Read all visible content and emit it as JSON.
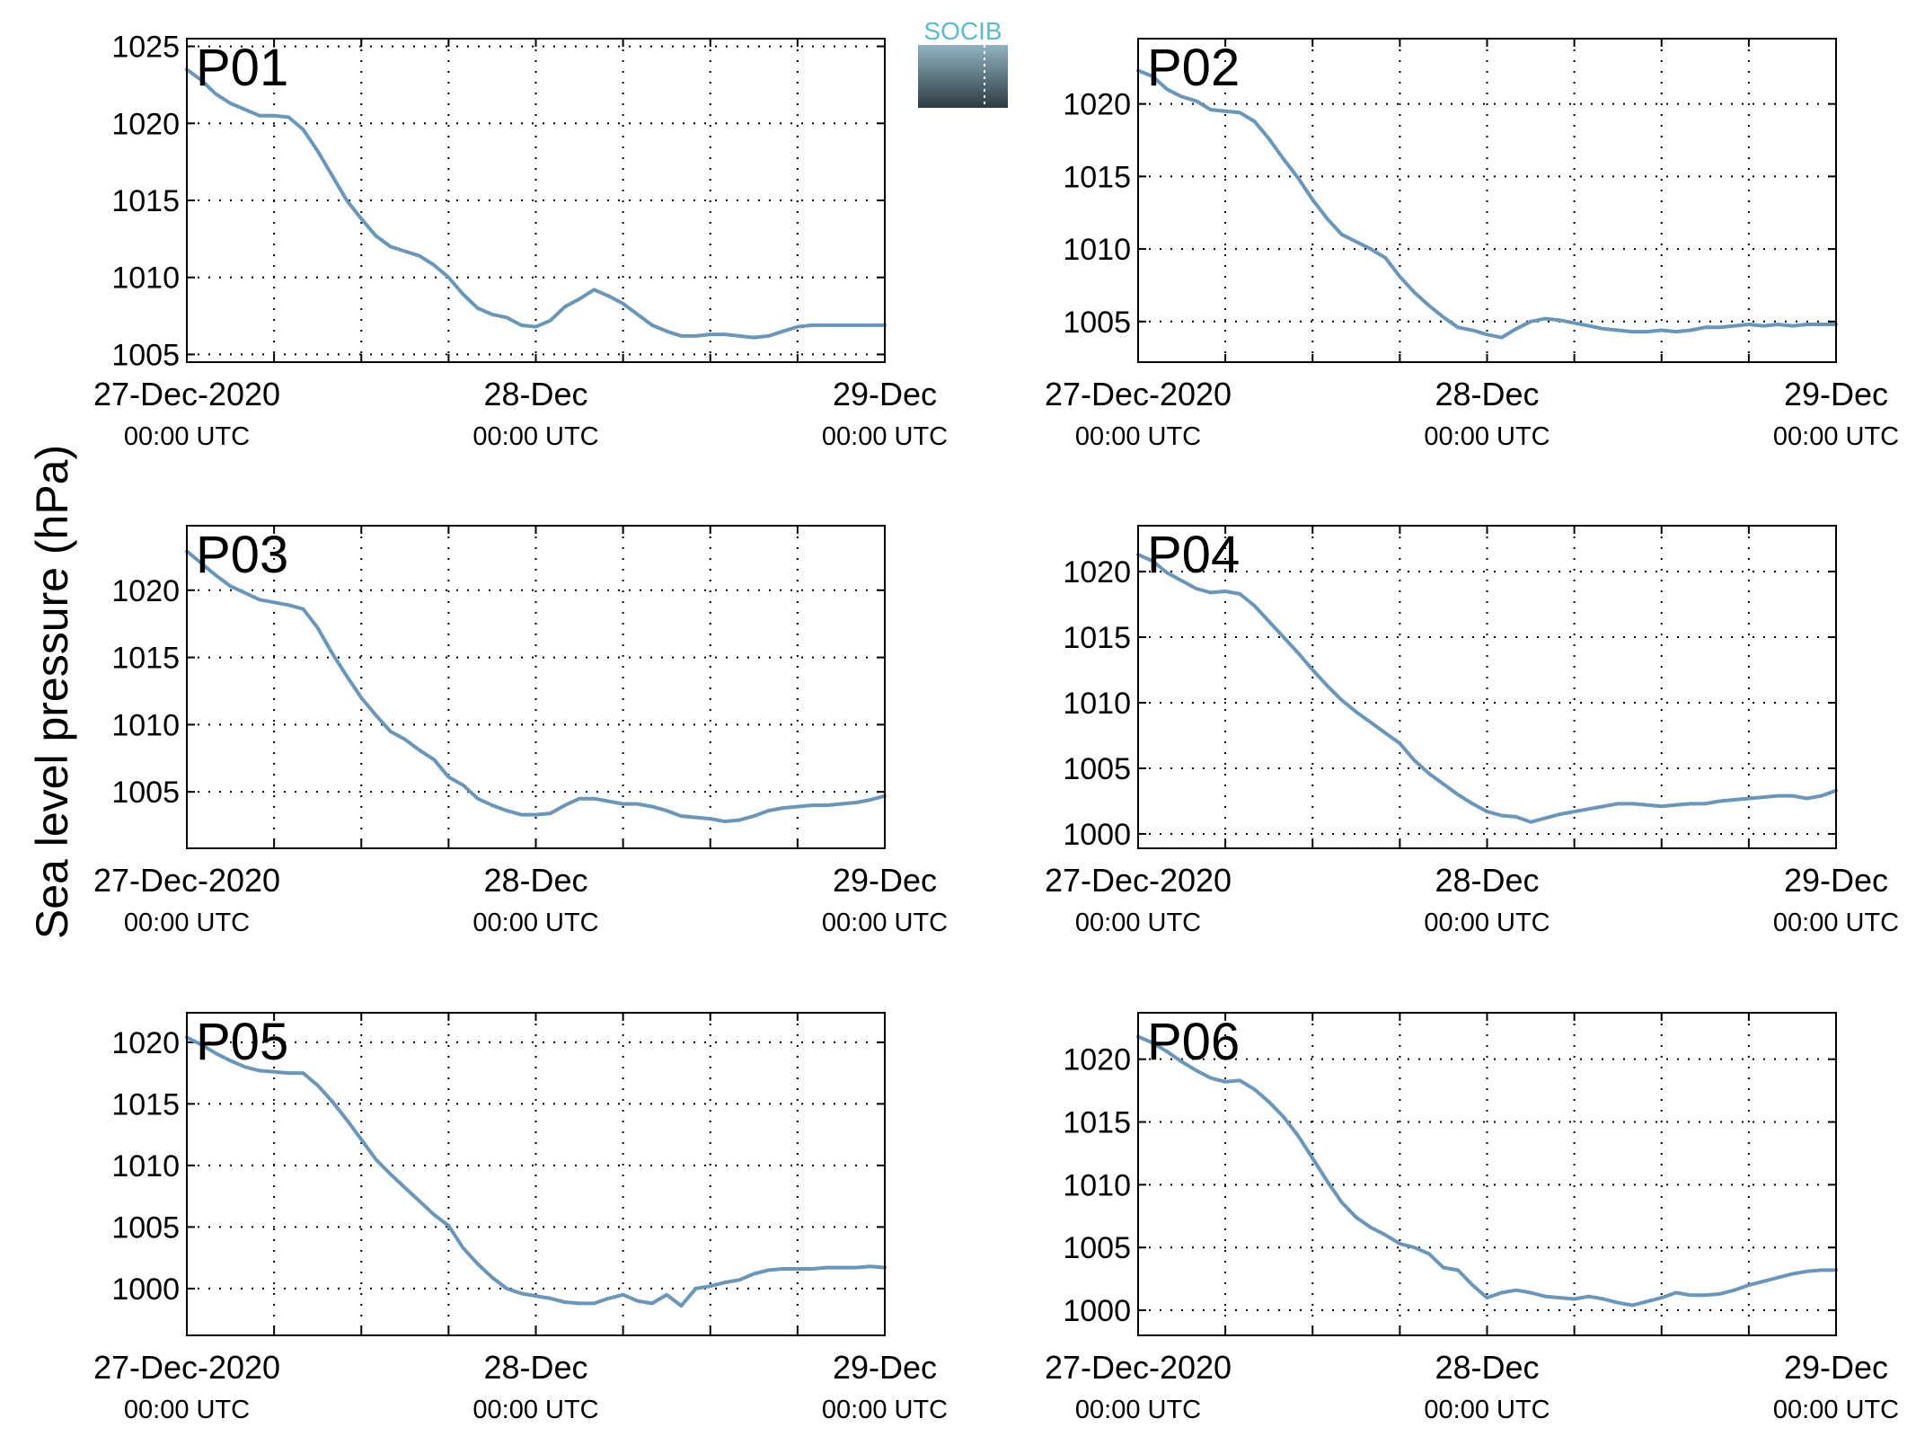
{
  "figure": {
    "ylabel": "Sea level pressure (hPa)",
    "logo_text": "SOCIB",
    "line_color": "#6a96ba",
    "label_color": "#ff0000"
  },
  "chart_data": [
    {
      "type": "line",
      "name": "P01",
      "xlim": [
        0,
        48
      ],
      "ylim": [
        1004.5,
        1025.5
      ],
      "yticks": [
        1005,
        1010,
        1015,
        1020,
        1025
      ],
      "x": [
        0,
        1,
        2,
        3,
        4,
        5,
        6,
        7,
        8,
        9,
        10,
        11,
        12,
        13,
        14,
        15,
        16,
        17,
        18,
        19,
        20,
        21,
        22,
        23,
        24,
        25,
        26,
        27,
        28,
        29,
        30,
        31,
        32,
        33,
        34,
        35,
        36,
        37,
        38,
        39,
        40,
        41,
        42,
        43,
        44,
        45,
        46,
        47,
        48
      ],
      "values": [
        1023.5,
        1022.8,
        1021.9,
        1021.3,
        1020.9,
        1020.5,
        1020.5,
        1020.4,
        1019.6,
        1018.2,
        1016.6,
        1015.0,
        1013.8,
        1012.7,
        1012.0,
        1011.7,
        1011.4,
        1010.8,
        1010.0,
        1008.9,
        1008.0,
        1007.6,
        1007.4,
        1006.9,
        1006.8,
        1007.2,
        1008.1,
        1008.6,
        1009.2,
        1008.8,
        1008.3,
        1007.6,
        1006.9,
        1006.5,
        1006.2,
        1006.2,
        1006.3,
        1006.3,
        1006.2,
        1006.1,
        1006.2,
        1006.5,
        1006.8,
        1006.9,
        1006.9,
        1006.9,
        1006.9,
        1006.9,
        1006.9
      ]
    },
    {
      "type": "line",
      "name": "P02",
      "xlim": [
        0,
        48
      ],
      "ylim": [
        1002.2,
        1024.5
      ],
      "yticks": [
        1005,
        1010,
        1015,
        1020
      ],
      "x": [
        0,
        1,
        2,
        3,
        4,
        5,
        6,
        7,
        8,
        9,
        10,
        11,
        12,
        13,
        14,
        15,
        16,
        17,
        18,
        19,
        20,
        21,
        22,
        23,
        24,
        25,
        26,
        27,
        28,
        29,
        30,
        31,
        32,
        33,
        34,
        35,
        36,
        37,
        38,
        39,
        40,
        41,
        42,
        43,
        44,
        45,
        46,
        47,
        48
      ],
      "values": [
        1022.3,
        1021.9,
        1021.0,
        1020.5,
        1020.2,
        1019.6,
        1019.5,
        1019.4,
        1018.8,
        1017.6,
        1016.2,
        1014.9,
        1013.4,
        1012.1,
        1011.0,
        1010.5,
        1010.0,
        1009.4,
        1008.1,
        1007.0,
        1006.1,
        1005.3,
        1004.6,
        1004.4,
        1004.1,
        1003.9,
        1004.5,
        1005.0,
        1005.2,
        1005.1,
        1004.9,
        1004.7,
        1004.5,
        1004.4,
        1004.3,
        1004.3,
        1004.4,
        1004.3,
        1004.4,
        1004.6,
        1004.6,
        1004.7,
        1004.8,
        1004.7,
        1004.8,
        1004.7,
        1004.8,
        1004.8,
        1004.8
      ]
    },
    {
      "type": "line",
      "name": "P03",
      "xlim": [
        0,
        48
      ],
      "ylim": [
        1000.8,
        1024.8
      ],
      "yticks": [
        1005,
        1010,
        1015,
        1020
      ],
      "x": [
        0,
        1,
        2,
        3,
        4,
        5,
        6,
        7,
        8,
        9,
        10,
        11,
        12,
        13,
        14,
        15,
        16,
        17,
        18,
        19,
        20,
        21,
        22,
        23,
        24,
        25,
        26,
        27,
        28,
        29,
        30,
        31,
        32,
        33,
        34,
        35,
        36,
        37,
        38,
        39,
        40,
        41,
        42,
        43,
        44,
        45,
        46,
        47,
        48
      ],
      "values": [
        1022.9,
        1022.0,
        1021.1,
        1020.3,
        1019.8,
        1019.3,
        1019.1,
        1018.9,
        1018.6,
        1017.2,
        1015.3,
        1013.6,
        1012.0,
        1010.7,
        1009.5,
        1008.9,
        1008.1,
        1007.4,
        1006.1,
        1005.5,
        1004.5,
        1004.0,
        1003.6,
        1003.3,
        1003.3,
        1003.4,
        1004.0,
        1004.5,
        1004.5,
        1004.3,
        1004.1,
        1004.1,
        1003.9,
        1003.6,
        1003.2,
        1003.1,
        1003.0,
        1002.8,
        1002.9,
        1003.2,
        1003.6,
        1003.8,
        1003.9,
        1004.0,
        1004.0,
        1004.1,
        1004.2,
        1004.4,
        1004.7
      ]
    },
    {
      "type": "line",
      "name": "P04",
      "xlim": [
        0,
        48
      ],
      "ylim": [
        998.9,
        1023.5
      ],
      "yticks": [
        1000,
        1005,
        1010,
        1015,
        1020
      ],
      "x": [
        0,
        1,
        2,
        3,
        4,
        5,
        6,
        7,
        8,
        9,
        10,
        11,
        12,
        13,
        14,
        15,
        16,
        17,
        18,
        19,
        20,
        21,
        22,
        23,
        24,
        25,
        26,
        27,
        28,
        29,
        30,
        31,
        32,
        33,
        34,
        35,
        36,
        37,
        38,
        39,
        40,
        41,
        42,
        43,
        44,
        45,
        46,
        47,
        48
      ],
      "values": [
        1021.3,
        1020.8,
        1019.9,
        1019.3,
        1018.7,
        1018.4,
        1018.5,
        1018.3,
        1017.4,
        1016.2,
        1015.0,
        1013.8,
        1012.5,
        1011.3,
        1010.2,
        1009.3,
        1008.5,
        1007.7,
        1006.9,
        1005.6,
        1004.6,
        1003.8,
        1003.0,
        1002.3,
        1001.7,
        1001.4,
        1001.3,
        1000.9,
        1001.2,
        1001.5,
        1001.7,
        1001.9,
        1002.1,
        1002.3,
        1002.3,
        1002.2,
        1002.1,
        1002.2,
        1002.3,
        1002.3,
        1002.5,
        1002.6,
        1002.7,
        1002.8,
        1002.9,
        1002.9,
        1002.7,
        1002.9,
        1003.3
      ]
    },
    {
      "type": "line",
      "name": "P05",
      "xlim": [
        0,
        48
      ],
      "ylim": [
        996.2,
        1022.4
      ],
      "yticks": [
        1000,
        1005,
        1010,
        1015,
        1020
      ],
      "x": [
        0,
        1,
        2,
        3,
        4,
        5,
        6,
        7,
        8,
        9,
        10,
        11,
        12,
        13,
        14,
        15,
        16,
        17,
        18,
        19,
        20,
        21,
        22,
        23,
        24,
        25,
        26,
        27,
        28,
        29,
        30,
        31,
        32,
        33,
        34,
        35,
        36,
        37,
        38,
        39,
        40,
        41,
        42,
        43,
        44,
        45,
        46,
        47,
        48
      ],
      "values": [
        1020.4,
        1019.8,
        1019.1,
        1018.5,
        1018.0,
        1017.7,
        1017.6,
        1017.5,
        1017.5,
        1016.5,
        1015.2,
        1013.7,
        1012.1,
        1010.5,
        1009.3,
        1008.2,
        1007.1,
        1006.0,
        1005.1,
        1003.3,
        1002.0,
        1000.9,
        1000.0,
        999.6,
        999.4,
        999.2,
        998.9,
        998.8,
        998.8,
        999.2,
        999.5,
        999.0,
        998.8,
        999.5,
        998.6,
        1000.0,
        1000.2,
        1000.5,
        1000.7,
        1001.2,
        1001.5,
        1001.6,
        1001.6,
        1001.6,
        1001.7,
        1001.7,
        1001.7,
        1001.8,
        1001.7
      ]
    },
    {
      "type": "line",
      "name": "P06",
      "xlim": [
        0,
        48
      ],
      "ylim": [
        998.0,
        1023.7
      ],
      "yticks": [
        1000,
        1005,
        1010,
        1015,
        1020
      ],
      "x": [
        0,
        1,
        2,
        3,
        4,
        5,
        6,
        7,
        8,
        9,
        10,
        11,
        12,
        13,
        14,
        15,
        16,
        17,
        18,
        19,
        20,
        21,
        22,
        23,
        24,
        25,
        26,
        27,
        28,
        29,
        30,
        31,
        32,
        33,
        34,
        35,
        36,
        37,
        38,
        39,
        40,
        41,
        42,
        43,
        44,
        45,
        46,
        47,
        48
      ],
      "values": [
        1021.8,
        1021.3,
        1020.6,
        1019.8,
        1019.1,
        1018.5,
        1018.2,
        1018.3,
        1017.6,
        1016.6,
        1015.4,
        1013.9,
        1012.1,
        1010.3,
        1008.6,
        1007.4,
        1006.6,
        1006.0,
        1005.3,
        1005.0,
        1004.5,
        1003.4,
        1003.2,
        1002.0,
        1001.0,
        1001.4,
        1001.6,
        1001.4,
        1001.1,
        1001.0,
        1000.9,
        1001.1,
        1000.9,
        1000.6,
        1000.4,
        1000.7,
        1001.0,
        1001.4,
        1001.2,
        1001.2,
        1001.3,
        1001.6,
        1002.0,
        1002.3,
        1002.6,
        1002.9,
        1003.1,
        1003.2,
        1003.2
      ]
    }
  ],
  "x_axis": {
    "tick_labels": [
      {
        "date": "27-Dec-2020",
        "time": "00:00 UTC",
        "hour": 0
      },
      {
        "date": "28-Dec",
        "time": "00:00 UTC",
        "hour": 24
      },
      {
        "date": "29-Dec",
        "time": "00:00 UTC",
        "hour": 48
      }
    ],
    "minor_ticks": [
      6,
      12,
      18,
      30,
      36,
      42
    ]
  }
}
